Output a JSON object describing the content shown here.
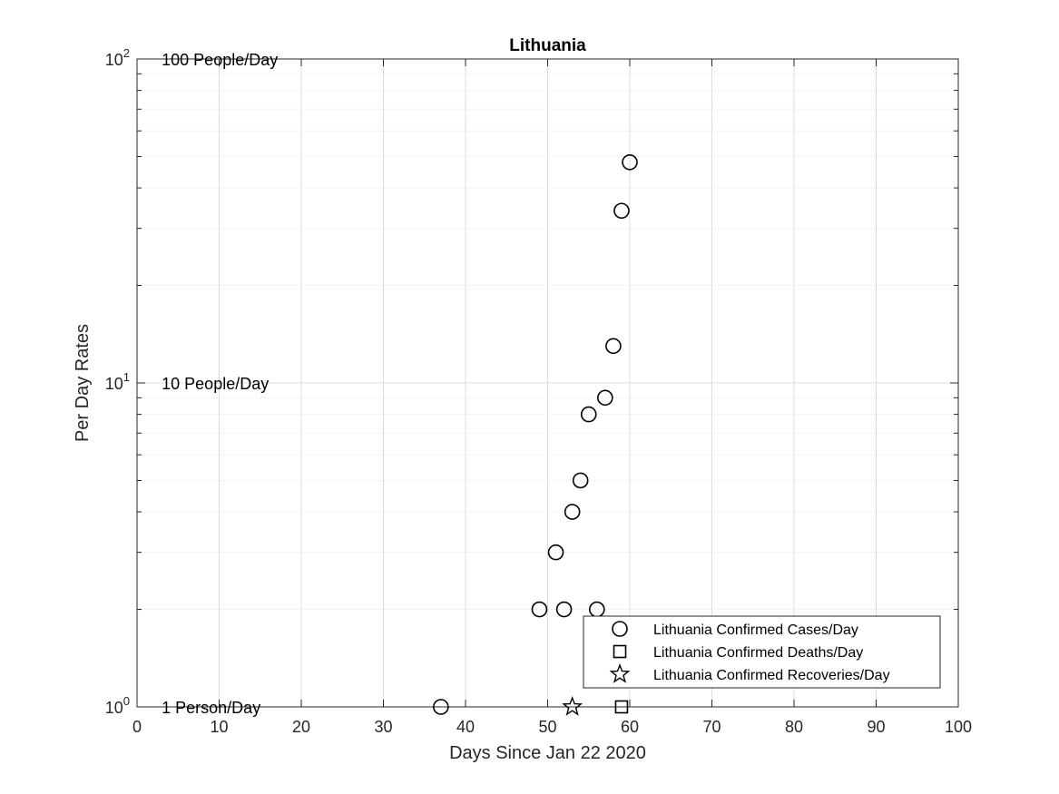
{
  "chart_data": {
    "type": "scatter",
    "title": "Lithuania",
    "xlabel": "Days Since Jan 22 2020",
    "ylabel": "Per Day Rates",
    "xlim": [
      0,
      100
    ],
    "ylim": [
      1,
      100
    ],
    "yscale": "log",
    "grid": true,
    "legend_position": "bottom-right",
    "x_ticks": [
      "0",
      "10",
      "20",
      "30",
      "40",
      "50",
      "60",
      "70",
      "80",
      "90",
      "100"
    ],
    "y_ticks": [
      {
        "value": 1,
        "base": "10",
        "exp": "0"
      },
      {
        "value": 10,
        "base": "10",
        "exp": "1"
      },
      {
        "value": 100,
        "base": "10",
        "exp": "2"
      }
    ],
    "annotations": [
      {
        "text": "100 People/Day",
        "x": 3,
        "y": 100
      },
      {
        "text": "10 People/Day",
        "x": 3,
        "y": 10
      },
      {
        "text": "1 Person/Day",
        "x": 3,
        "y": 1
      }
    ],
    "series": [
      {
        "name": "Lithuania Confirmed Cases/Day",
        "marker": "circle",
        "color": "#000000",
        "x": [
          37,
          49,
          51,
          52,
          53,
          54,
          55,
          56,
          57,
          58,
          59,
          60
        ],
        "y": [
          1,
          2,
          3,
          2,
          4,
          5,
          8,
          2,
          9,
          13,
          34,
          48
        ]
      },
      {
        "name": "Lithuania Confirmed Deaths/Day",
        "marker": "square",
        "color": "#000000",
        "x": [
          59
        ],
        "y": [
          1
        ]
      },
      {
        "name": "Lithuania Confirmed Recoveries/Day",
        "marker": "star",
        "color": "#000000",
        "x": [
          53
        ],
        "y": [
          1
        ]
      }
    ]
  }
}
